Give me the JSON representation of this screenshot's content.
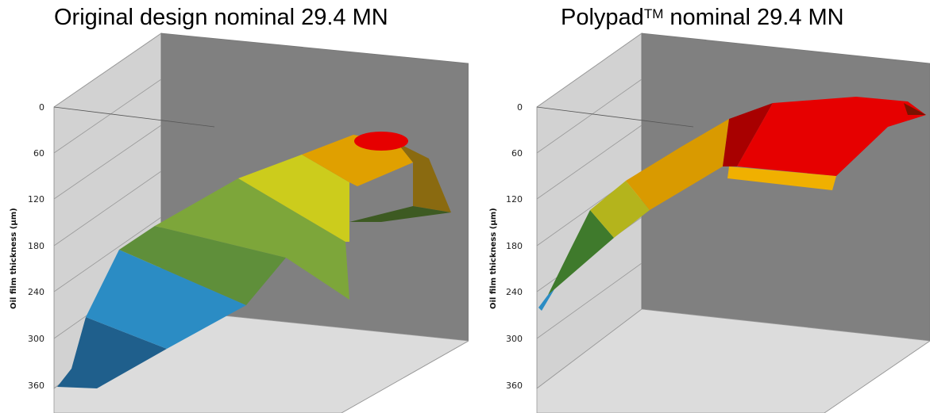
{
  "chart_data": [
    {
      "type": "surface",
      "title": "Original design nominal 29.4 MN",
      "ylabel": "Oil film thickness (μm)",
      "y_ticks": [
        "0",
        "60",
        "120",
        "180",
        "240",
        "300",
        "360"
      ],
      "ylim": [
        0,
        360
      ],
      "y_inverted": true,
      "grid": true,
      "surface_profile_min_thickness_um": [
        360,
        300,
        235,
        190,
        150,
        110,
        72,
        40,
        25,
        120
      ],
      "bands": [
        "red",
        "orange",
        "yellow",
        "green",
        "blue"
      ]
    },
    {
      "type": "surface",
      "title": "Polypad",
      "title_sup": "TM",
      "title_suffix": " nominal 29.4 MN",
      "ylabel": "Oil film thickness (μm)",
      "y_ticks": [
        "0",
        "60",
        "120",
        "180",
        "240",
        "300",
        "360"
      ],
      "ylim": [
        0,
        360
      ],
      "y_inverted": true,
      "grid": true,
      "surface_profile_min_thickness_um": [
        260,
        145,
        85,
        45,
        10,
        5,
        5,
        10
      ],
      "bands": [
        "red",
        "orange",
        "yellow",
        "green",
        "blue"
      ]
    }
  ],
  "colors": {
    "back_wall": "#808080",
    "side_wall": "#d4d4d4",
    "floor": "#dcdcdc",
    "red": "#e60000",
    "orange": "#e8a000",
    "yellow": "#d4d000",
    "green": "#7da63a",
    "blue": "#2b8cc4",
    "dark_blue": "#1f5f8c"
  }
}
